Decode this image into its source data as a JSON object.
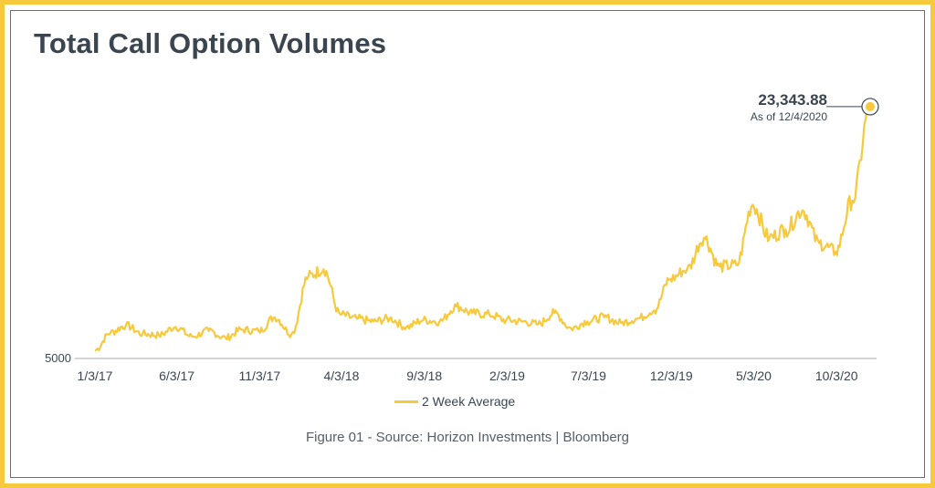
{
  "chart_data": {
    "type": "line",
    "title": "Total Call Option Volumes",
    "xlabel": "",
    "ylabel": "",
    "y_tick_labels": [
      "5000"
    ],
    "x_tick_labels": [
      "1/3/17",
      "6/3/17",
      "11/3/17",
      "4/3/18",
      "9/3/18",
      "2/3/19",
      "7/3/19",
      "12/3/19",
      "5/3/20",
      "10/3/20"
    ],
    "x_range": [
      "1/3/17",
      "12/4/2020"
    ],
    "y_range": [
      5000,
      25000
    ],
    "grid": false,
    "legend_position": "bottom-center",
    "series": [
      {
        "name": "2 Week Average",
        "color": "#f7c93c",
        "points": [
          [
            "1/3/17",
            5600
          ],
          [
            "2/1/17",
            6900
          ],
          [
            "3/1/17",
            7400
          ],
          [
            "4/1/17",
            6800
          ],
          [
            "5/1/17",
            6700
          ],
          [
            "6/1/17",
            7300
          ],
          [
            "7/1/17",
            6600
          ],
          [
            "8/1/17",
            7000
          ],
          [
            "9/1/17",
            6500
          ],
          [
            "10/1/17",
            7100
          ],
          [
            "11/1/17",
            7000
          ],
          [
            "12/1/17",
            8000
          ],
          [
            "1/1/18",
            6800
          ],
          [
            "2/1/18",
            11000
          ],
          [
            "3/1/18",
            11500
          ],
          [
            "4/1/18",
            8200
          ],
          [
            "5/1/18",
            7900
          ],
          [
            "6/1/18",
            7700
          ],
          [
            "7/1/18",
            7900
          ],
          [
            "8/1/18",
            7300
          ],
          [
            "9/1/18",
            7800
          ],
          [
            "10/1/18",
            7700
          ],
          [
            "11/1/18",
            8800
          ],
          [
            "12/1/18",
            8300
          ],
          [
            "1/1/19",
            8200
          ],
          [
            "2/1/19",
            7800
          ],
          [
            "3/1/19",
            7700
          ],
          [
            "4/1/19",
            7500
          ],
          [
            "5/1/19",
            8300
          ],
          [
            "6/1/19",
            7200
          ],
          [
            "7/1/19",
            7700
          ],
          [
            "8/1/19",
            8000
          ],
          [
            "9/1/19",
            7600
          ],
          [
            "10/1/19",
            7900
          ],
          [
            "11/1/19",
            8500
          ],
          [
            "12/1/19",
            10800
          ],
          [
            "1/1/20",
            11500
          ],
          [
            "2/1/20",
            13800
          ],
          [
            "3/1/20",
            11700
          ],
          [
            "4/1/20",
            11800
          ],
          [
            "5/1/20",
            16200
          ],
          [
            "6/1/20",
            13800
          ],
          [
            "7/1/20",
            14400
          ],
          [
            "8/1/20",
            15800
          ],
          [
            "9/1/20",
            13400
          ],
          [
            "10/1/20",
            12800
          ],
          [
            "11/1/20",
            16500
          ],
          [
            "12/4/20",
            23343.88
          ]
        ]
      }
    ],
    "annotation": {
      "value_label": "23,343.88",
      "date_label": "As of 12/4/2020"
    }
  },
  "caption": "Figure 01 - Source: Horizon Investments | Bloomberg"
}
